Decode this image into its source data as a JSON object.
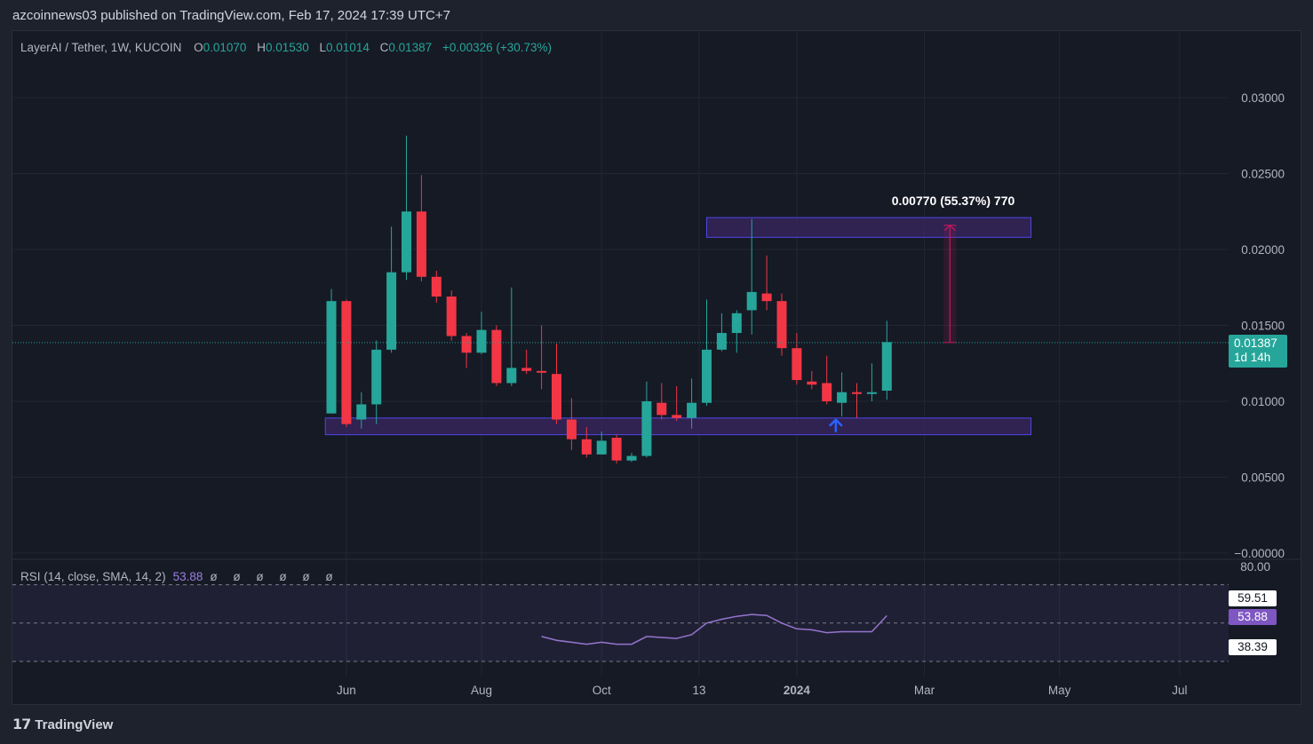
{
  "header": {
    "published_line": "azcoinnews03 published on TradingView.com, Feb 17, 2024 17:39 UTC+7"
  },
  "legend": {
    "symbol": "LayerAI / Tether, 1W, KUCOIN",
    "open_label": "O",
    "open": "0.01070",
    "high_label": "H",
    "high": "0.01530",
    "low_label": "L",
    "low": "0.01014",
    "close_label": "C",
    "close": "0.01387",
    "change": "+0.00326 (+30.73%)"
  },
  "price_tag": {
    "price": "0.01387",
    "countdown": "1d 14h"
  },
  "measure_label": "0.00770 (55.37%) 770",
  "rsi": {
    "label": "RSI (14, close, SMA, 14, 2)",
    "value": "53.88",
    "placeholders": "ø ø ø ø ø ø",
    "upper_tag": "59.51",
    "lower_tag": "38.39",
    "axis_top": "80.00"
  },
  "footer": {
    "brand": "TradingView"
  },
  "colors": {
    "up": "#26a69a",
    "down": "#f23645",
    "zone_fill": "#3a2560",
    "zone_border": "#4f46e5",
    "rsi_line": "#9575cd",
    "measure": "#c2185b",
    "arrow": "#2962ff"
  },
  "chart_data": {
    "type": "candlestick",
    "title": "LayerAI / Tether, 1W, KUCOIN",
    "ylim": [
      0,
      0.0315
    ],
    "y_ticks": [
      "0.03000",
      "0.02500",
      "0.02000",
      "0.01500",
      "0.01000",
      "0.00500",
      "−0.00000"
    ],
    "x_ticks": [
      "Jun",
      "Aug",
      "Oct",
      "13",
      "2024",
      "Mar",
      "May",
      "Jul"
    ],
    "x_tick_weeks": [
      1,
      10,
      18,
      24.5,
      31,
      39.5,
      48.5,
      56.5
    ],
    "candles": [
      {
        "w": 0,
        "o": 0.0092,
        "h": 0.0174,
        "l": 0.0092,
        "c": 0.0166
      },
      {
        "w": 1,
        "o": 0.0166,
        "h": 0.0167,
        "l": 0.0083,
        "c": 0.0085
      },
      {
        "w": 2,
        "o": 0.0088,
        "h": 0.0106,
        "l": 0.0082,
        "c": 0.0098
      },
      {
        "w": 3,
        "o": 0.0098,
        "h": 0.014,
        "l": 0.0085,
        "c": 0.0134
      },
      {
        "w": 4,
        "o": 0.0134,
        "h": 0.0215,
        "l": 0.0132,
        "c": 0.0185
      },
      {
        "w": 5,
        "o": 0.0185,
        "h": 0.0275,
        "l": 0.018,
        "c": 0.0225
      },
      {
        "w": 6,
        "o": 0.0225,
        "h": 0.0249,
        "l": 0.0179,
        "c": 0.0182
      },
      {
        "w": 7,
        "o": 0.0182,
        "h": 0.0186,
        "l": 0.0165,
        "c": 0.0169
      },
      {
        "w": 8,
        "o": 0.0169,
        "h": 0.0173,
        "l": 0.014,
        "c": 0.0143
      },
      {
        "w": 9,
        "o": 0.0143,
        "h": 0.0145,
        "l": 0.0122,
        "c": 0.0132
      },
      {
        "w": 10,
        "o": 0.0132,
        "h": 0.0159,
        "l": 0.0131,
        "c": 0.0147
      },
      {
        "w": 11,
        "o": 0.0147,
        "h": 0.015,
        "l": 0.011,
        "c": 0.0112
      },
      {
        "w": 12,
        "o": 0.0112,
        "h": 0.0175,
        "l": 0.011,
        "c": 0.0122
      },
      {
        "w": 13,
        "o": 0.0122,
        "h": 0.0134,
        "l": 0.0118,
        "c": 0.012
      },
      {
        "w": 14,
        "o": 0.012,
        "h": 0.015,
        "l": 0.0108,
        "c": 0.0119
      },
      {
        "w": 15,
        "o": 0.0118,
        "h": 0.0138,
        "l": 0.0085,
        "c": 0.0088
      },
      {
        "w": 16,
        "o": 0.0088,
        "h": 0.0102,
        "l": 0.0068,
        "c": 0.0075
      },
      {
        "w": 17,
        "o": 0.0075,
        "h": 0.0083,
        "l": 0.0063,
        "c": 0.0065
      },
      {
        "w": 18,
        "o": 0.0065,
        "h": 0.008,
        "l": 0.0065,
        "c": 0.0074
      },
      {
        "w": 19,
        "o": 0.0076,
        "h": 0.0078,
        "l": 0.0059,
        "c": 0.0061
      },
      {
        "w": 20,
        "o": 0.0061,
        "h": 0.0066,
        "l": 0.006,
        "c": 0.0064
      },
      {
        "w": 21,
        "o": 0.0064,
        "h": 0.0113,
        "l": 0.0063,
        "c": 0.01
      },
      {
        "w": 22,
        "o": 0.0099,
        "h": 0.0112,
        "l": 0.0088,
        "c": 0.0091
      },
      {
        "w": 23,
        "o": 0.0091,
        "h": 0.011,
        "l": 0.0087,
        "c": 0.0089
      },
      {
        "w": 24,
        "o": 0.0089,
        "h": 0.0115,
        "l": 0.0082,
        "c": 0.0099
      },
      {
        "w": 25,
        "o": 0.0099,
        "h": 0.0167,
        "l": 0.0097,
        "c": 0.0134
      },
      {
        "w": 26,
        "o": 0.0134,
        "h": 0.0158,
        "l": 0.0133,
        "c": 0.0145
      },
      {
        "w": 27,
        "o": 0.0145,
        "h": 0.016,
        "l": 0.0132,
        "c": 0.0158
      },
      {
        "w": 28,
        "o": 0.016,
        "h": 0.022,
        "l": 0.0144,
        "c": 0.0172
      },
      {
        "w": 29,
        "o": 0.0171,
        "h": 0.0196,
        "l": 0.016,
        "c": 0.0166
      },
      {
        "w": 30,
        "o": 0.0166,
        "h": 0.0171,
        "l": 0.013,
        "c": 0.0135
      },
      {
        "w": 31,
        "o": 0.0135,
        "h": 0.0145,
        "l": 0.0111,
        "c": 0.0114
      },
      {
        "w": 32,
        "o": 0.0113,
        "h": 0.012,
        "l": 0.0108,
        "c": 0.0111
      },
      {
        "w": 33,
        "o": 0.0112,
        "h": 0.013,
        "l": 0.0098,
        "c": 0.01
      },
      {
        "w": 34,
        "o": 0.0099,
        "h": 0.0119,
        "l": 0.009,
        "c": 0.0106
      },
      {
        "w": 35,
        "o": 0.0106,
        "h": 0.0112,
        "l": 0.0089,
        "c": 0.0105
      },
      {
        "w": 36,
        "o": 0.0105,
        "h": 0.0125,
        "l": 0.01,
        "c": 0.0106
      },
      {
        "w": 37,
        "o": 0.0107,
        "h": 0.0153,
        "l": 0.0101,
        "c": 0.0139
      }
    ],
    "support_zone": {
      "y_low": 0.0078,
      "y_high": 0.0089,
      "w_start": -0.4,
      "w_end": 46.6
    },
    "resistance_zone": {
      "y_low": 0.0208,
      "y_high": 0.0221,
      "w_start": 25,
      "w_end": 46.6
    },
    "measure": {
      "from": 0.01387,
      "to": 0.0216,
      "w": 41.2,
      "label": "0.00770 (55.37%) 770"
    },
    "current_price": 0.01387,
    "rsi": {
      "ylim": [
        30,
        80
      ],
      "upper_band": 70,
      "mid_band": 50,
      "lower_band": 30,
      "weeks": [
        14,
        15,
        16,
        17,
        18,
        19,
        20,
        21,
        22,
        23,
        24,
        25,
        26,
        27,
        28,
        29,
        30,
        31,
        32,
        33,
        34,
        35,
        36,
        37
      ],
      "values": [
        43,
        41,
        40,
        39,
        40,
        39,
        39,
        43,
        42.5,
        42,
        44,
        50,
        52,
        53.5,
        54.5,
        54,
        50,
        47,
        46.5,
        45,
        45.5,
        45.5,
        45.5,
        53.88
      ]
    }
  }
}
